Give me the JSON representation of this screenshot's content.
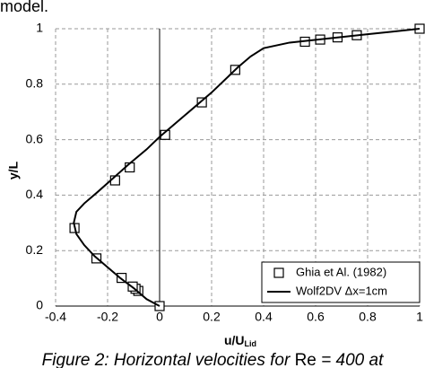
{
  "text_above": "model.",
  "chart_data": {
    "type": "line",
    "xlabel": "u/U",
    "xlabel_sub": "Lid",
    "ylabel": "y/L",
    "xlim": [
      -0.4,
      1
    ],
    "ylim": [
      0,
      1
    ],
    "xticks": [
      -0.4,
      -0.2,
      0,
      0.2,
      0.4,
      0.6,
      0.8,
      1
    ],
    "yticks": [
      0,
      0.2,
      0.4,
      0.6,
      0.8,
      1
    ],
    "grid": true,
    "legend": "lower right",
    "series": [
      {
        "name": "Ghia et Al. (1982)",
        "style": "markers",
        "marker": "square",
        "color": "#000000",
        "x": [
          0,
          -0.08186,
          -0.09266,
          -0.10338,
          -0.14612,
          -0.24299,
          -0.32726,
          -0.17119,
          -0.11477,
          0.02135,
          0.16256,
          0.29093,
          0.55892,
          0.61756,
          0.68439,
          0.75837,
          1
        ],
        "values": [
          0,
          0.0547,
          0.0625,
          0.0703,
          0.1016,
          0.1719,
          0.2813,
          0.4531,
          0.5,
          0.6172,
          0.7344,
          0.8516,
          0.9531,
          0.9609,
          0.9688,
          0.9766,
          1
        ]
      },
      {
        "name": "Wolf2DV Δx=1cm",
        "style": "line",
        "color": "#000000",
        "x": [
          0,
          -0.05,
          -0.1,
          -0.15,
          -0.2,
          -0.25,
          -0.29,
          -0.32,
          -0.33,
          -0.32,
          -0.29,
          -0.24,
          -0.18,
          -0.12,
          -0.05,
          0,
          0.1,
          0.2,
          0.3,
          0.35,
          0.4,
          0.5,
          0.6,
          0.7,
          0.8,
          0.9,
          1
        ],
        "values": [
          0,
          0.025,
          0.065,
          0.1,
          0.14,
          0.18,
          0.22,
          0.26,
          0.3,
          0.34,
          0.37,
          0.41,
          0.46,
          0.51,
          0.565,
          0.61,
          0.69,
          0.77,
          0.86,
          0.9,
          0.93,
          0.95,
          0.96,
          0.97,
          0.98,
          0.99,
          1
        ]
      }
    ]
  },
  "caption": [
    "Figure 2: Horizontal velocities for ",
    "Re",
    " = 400 at"
  ]
}
